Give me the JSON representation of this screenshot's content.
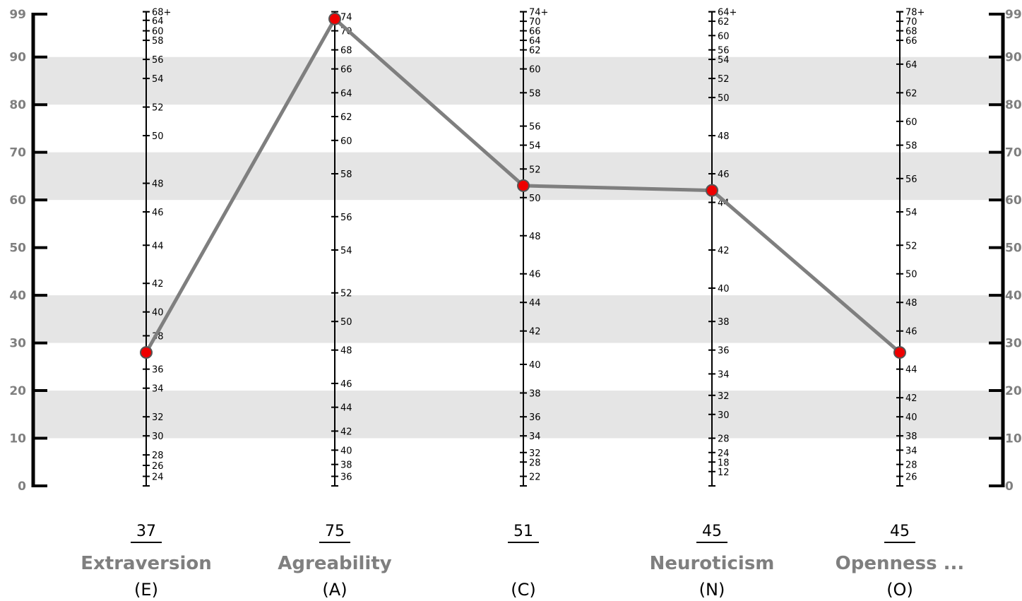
{
  "chart_data": {
    "type": "line",
    "percentile_scale": {
      "ticks": [
        0,
        10,
        20,
        30,
        40,
        50,
        60,
        70,
        80,
        90,
        99
      ],
      "labels": [
        "0",
        "10",
        "20",
        "30",
        "40",
        "50",
        "60",
        "70",
        "80",
        "90",
        "99"
      ],
      "ylim": [
        0,
        99
      ],
      "shaded_bands": [
        [
          10,
          20
        ],
        [
          30,
          40
        ],
        [
          60,
          70
        ],
        [
          80,
          90
        ]
      ]
    },
    "traits": [
      {
        "abbr": "(E)",
        "name": "Extraversion",
        "raw_score": "37",
        "percentile": 28,
        "scale": [
          {
            "label": "68+",
            "p": 99.5
          },
          {
            "label": "64",
            "p": 97.7
          },
          {
            "label": "60",
            "p": 95.5
          },
          {
            "label": "58",
            "p": 93.5
          },
          {
            "label": "56",
            "p": 89.5
          },
          {
            "label": "54",
            "p": 85.5
          },
          {
            "label": "52",
            "p": 79.5
          },
          {
            "label": "50",
            "p": 73.5
          },
          {
            "label": "48",
            "p": 63.5
          },
          {
            "label": "46",
            "p": 57.5
          },
          {
            "label": "44",
            "p": 50.5
          },
          {
            "label": "42",
            "p": 42.5
          },
          {
            "label": "40",
            "p": 36.5
          },
          {
            "label": "38",
            "p": 31.5
          },
          {
            "label": "36",
            "p": 24.5
          },
          {
            "label": "34",
            "p": 20.5
          },
          {
            "label": "32",
            "p": 14.5
          },
          {
            "label": "30",
            "p": 10.5
          },
          {
            "label": "28",
            "p": 6.5
          },
          {
            "label": "26",
            "p": 4.3
          },
          {
            "label": "24",
            "p": 2
          }
        ]
      },
      {
        "abbr": "(A)",
        "name": "Agreability",
        "raw_score": "75",
        "percentile": 98,
        "scale": [
          {
            "label": "74",
            "p": 98.5
          },
          {
            "label": "70",
            "p": 95.5
          },
          {
            "label": "68",
            "p": 91.5
          },
          {
            "label": "66",
            "p": 87.5
          },
          {
            "label": "64",
            "p": 82.5
          },
          {
            "label": "62",
            "p": 77.5
          },
          {
            "label": "60",
            "p": 72.5
          },
          {
            "label": "58",
            "p": 65.5
          },
          {
            "label": "56",
            "p": 56.5
          },
          {
            "label": "54",
            "p": 49.5
          },
          {
            "label": "52",
            "p": 40.5
          },
          {
            "label": "50",
            "p": 34.5
          },
          {
            "label": "48",
            "p": 28.5
          },
          {
            "label": "46",
            "p": 21.5
          },
          {
            "label": "44",
            "p": 16.5
          },
          {
            "label": "42",
            "p": 11.5
          },
          {
            "label": "40",
            "p": 7.5
          },
          {
            "label": "38",
            "p": 4.5
          },
          {
            "label": "36",
            "p": 2
          }
        ]
      },
      {
        "abbr": "(C)",
        "name": "",
        "raw_score": "51",
        "percentile": 63,
        "scale": [
          {
            "label": "74+",
            "p": 99.5
          },
          {
            "label": "70",
            "p": 97.5
          },
          {
            "label": "66",
            "p": 95.5
          },
          {
            "label": "64",
            "p": 93.5
          },
          {
            "label": "62",
            "p": 91.5
          },
          {
            "label": "60",
            "p": 87.5
          },
          {
            "label": "58",
            "p": 82.5
          },
          {
            "label": "56",
            "p": 75.5
          },
          {
            "label": "54",
            "p": 71.5
          },
          {
            "label": "52",
            "p": 66.5
          },
          {
            "label": "50",
            "p": 60.5
          },
          {
            "label": "48",
            "p": 52.5
          },
          {
            "label": "46",
            "p": 44.5
          },
          {
            "label": "44",
            "p": 38.5
          },
          {
            "label": "42",
            "p": 32.5
          },
          {
            "label": "40",
            "p": 25.5
          },
          {
            "label": "38",
            "p": 19.5
          },
          {
            "label": "36",
            "p": 14.5
          },
          {
            "label": "34",
            "p": 10.5
          },
          {
            "label": "32",
            "p": 7
          },
          {
            "label": "28",
            "p": 5
          },
          {
            "label": "22",
            "p": 2
          }
        ]
      },
      {
        "abbr": "(N)",
        "name": "Neuroticism",
        "raw_score": "45",
        "percentile": 62,
        "scale": [
          {
            "label": "64+",
            "p": 99.5
          },
          {
            "label": "62",
            "p": 97.5
          },
          {
            "label": "60",
            "p": 94.5
          },
          {
            "label": "56",
            "p": 91.5
          },
          {
            "label": "54",
            "p": 89.5
          },
          {
            "label": "52",
            "p": 85.5
          },
          {
            "label": "50",
            "p": 81.5
          },
          {
            "label": "48",
            "p": 73.5
          },
          {
            "label": "46",
            "p": 65.5
          },
          {
            "label": "44",
            "p": 59.5
          },
          {
            "label": "42",
            "p": 49.5
          },
          {
            "label": "40",
            "p": 41.5
          },
          {
            "label": "38",
            "p": 34.5
          },
          {
            "label": "36",
            "p": 28.5
          },
          {
            "label": "34",
            "p": 23.5
          },
          {
            "label": "32",
            "p": 19
          },
          {
            "label": "30",
            "p": 15
          },
          {
            "label": "28",
            "p": 10
          },
          {
            "label": "24",
            "p": 7
          },
          {
            "label": "18",
            "p": 5
          },
          {
            "label": "12",
            "p": 3
          }
        ]
      },
      {
        "abbr": "(O)",
        "name": "Openness ...",
        "raw_score": "45",
        "percentile": 28,
        "scale": [
          {
            "label": "78+",
            "p": 99.5
          },
          {
            "label": "70",
            "p": 97.5
          },
          {
            "label": "68",
            "p": 95.5
          },
          {
            "label": "66",
            "p": 93.5
          },
          {
            "label": "64",
            "p": 88.5
          },
          {
            "label": "62",
            "p": 82.5
          },
          {
            "label": "60",
            "p": 76.5
          },
          {
            "label": "58",
            "p": 71.5
          },
          {
            "label": "56",
            "p": 64.5
          },
          {
            "label": "54",
            "p": 57.5
          },
          {
            "label": "52",
            "p": 50.5
          },
          {
            "label": "50",
            "p": 44.5
          },
          {
            "label": "48",
            "p": 38.5
          },
          {
            "label": "46",
            "p": 32.5
          },
          {
            "label": "44",
            "p": 24.5
          },
          {
            "label": "42",
            "p": 18.5
          },
          {
            "label": "40",
            "p": 14.5
          },
          {
            "label": "38",
            "p": 10.5
          },
          {
            "label": "34",
            "p": 7.5
          },
          {
            "label": "28",
            "p": 4.5
          },
          {
            "label": "26",
            "p": 2
          }
        ]
      }
    ],
    "colors": {
      "band": "#e5e5e5",
      "line": "#7f7f7f",
      "marker": "#ee0000",
      "axis": "#000000",
      "label_gray": "#7f7f7f"
    }
  }
}
